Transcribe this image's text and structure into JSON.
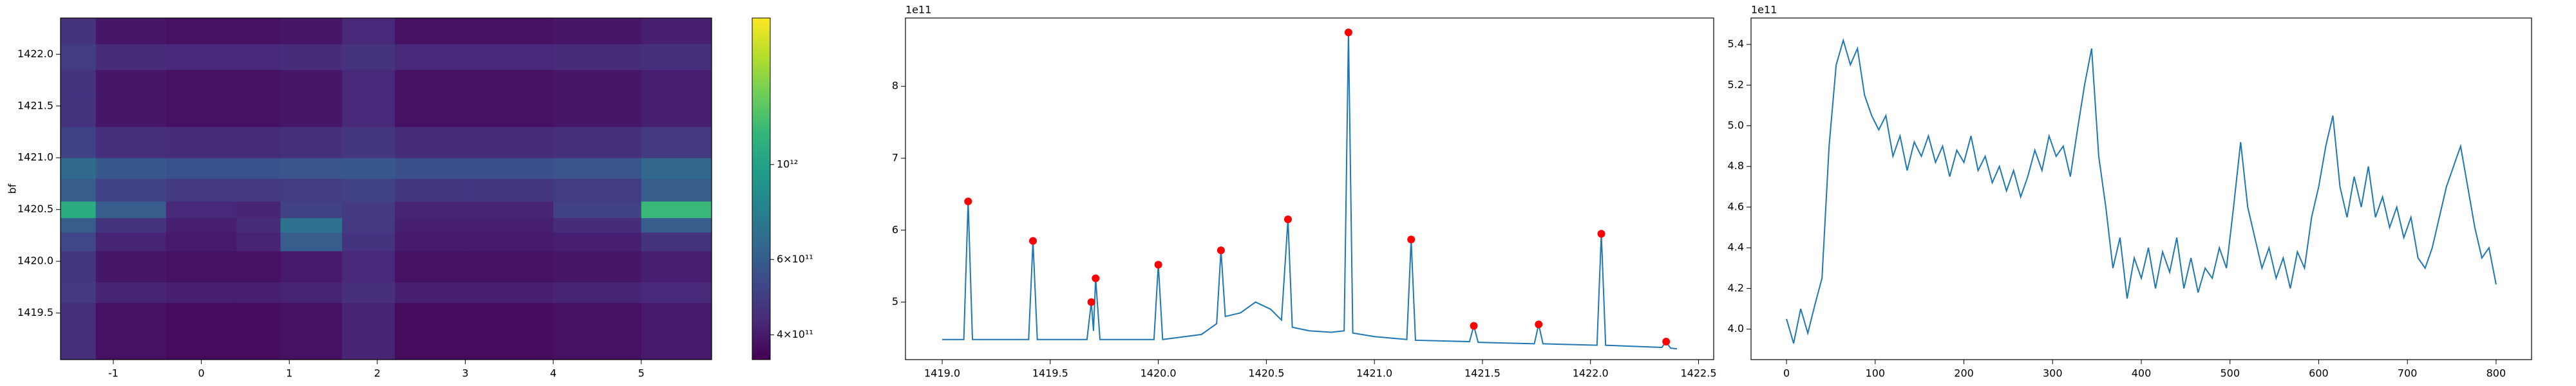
{
  "chart_data": [
    {
      "type": "heatmap",
      "ylabel": "bf",
      "xbins": [
        -1.6,
        -1.2,
        -0.4,
        0.4,
        0.9,
        1.6,
        2.2,
        3,
        4,
        5,
        5.8
      ],
      "ybins": [
        1419.05,
        1419.35,
        1419.6,
        1419.8,
        1420.1,
        1420.28,
        1420.42,
        1420.58,
        1420.8,
        1421.0,
        1421.3,
        1421.6,
        1421.85,
        1422.1,
        1422.35
      ],
      "z": [
        [
          450000000000.0,
          380000000000.0,
          370000000000.0,
          370000000000.0,
          380000000000.0,
          420000000000.0,
          370000000000.0,
          370000000000.0,
          380000000000.0,
          400000000000.0
        ],
        [
          450000000000.0,
          380000000000.0,
          370000000000.0,
          370000000000.0,
          380000000000.0,
          420000000000.0,
          370000000000.0,
          370000000000.0,
          380000000000.0,
          400000000000.0
        ],
        [
          480000000000.0,
          420000000000.0,
          410000000000.0,
          410000000000.0,
          420000000000.0,
          450000000000.0,
          410000000000.0,
          410000000000.0,
          420000000000.0,
          430000000000.0
        ],
        [
          470000000000.0,
          390000000000.0,
          380000000000.0,
          380000000000.0,
          400000000000.0,
          430000000000.0,
          380000000000.0,
          380000000000.0,
          390000000000.0,
          410000000000.0
        ],
        [
          520000000000.0,
          420000000000.0,
          400000000000.0,
          420000000000.0,
          600000000000.0,
          460000000000.0,
          400000000000.0,
          400000000000.0,
          410000000000.0,
          460000000000.0
        ],
        [
          600000000000.0,
          460000000000.0,
          410000000000.0,
          440000000000.0,
          700000000000.0,
          480000000000.0,
          410000000000.0,
          410000000000.0,
          440000000000.0,
          600000000000.0
        ],
        [
          1100000000000.0,
          600000000000.0,
          430000000000.0,
          420000000000.0,
          500000000000.0,
          480000000000.0,
          420000000000.0,
          420000000000.0,
          500000000000.0,
          1200000000000.0
        ],
        [
          600000000000.0,
          500000000000.0,
          480000000000.0,
          480000000000.0,
          490000000000.0,
          500000000000.0,
          470000000000.0,
          470000000000.0,
          490000000000.0,
          600000000000.0
        ],
        [
          650000000000.0,
          580000000000.0,
          560000000000.0,
          560000000000.0,
          570000000000.0,
          580000000000.0,
          550000000000.0,
          550000000000.0,
          570000000000.0,
          640000000000.0
        ],
        [
          500000000000.0,
          450000000000.0,
          440000000000.0,
          440000000000.0,
          450000000000.0,
          470000000000.0,
          440000000000.0,
          440000000000.0,
          450000000000.0,
          480000000000.0
        ],
        [
          460000000000.0,
          390000000000.0,
          380000000000.0,
          380000000000.0,
          390000000000.0,
          430000000000.0,
          380000000000.0,
          380000000000.0,
          390000000000.0,
          410000000000.0
        ],
        [
          460000000000.0,
          390000000000.0,
          380000000000.0,
          380000000000.0,
          390000000000.0,
          430000000000.0,
          380000000000.0,
          380000000000.0,
          390000000000.0,
          410000000000.0
        ],
        [
          490000000000.0,
          440000000000.0,
          430000000000.0,
          430000000000.0,
          440000000000.0,
          460000000000.0,
          430000000000.0,
          430000000000.0,
          440000000000.0,
          450000000000.0
        ],
        [
          460000000000.0,
          390000000000.0,
          380000000000.0,
          380000000000.0,
          390000000000.0,
          430000000000.0,
          380000000000.0,
          380000000000.0,
          390000000000.0,
          410000000000.0
        ]
      ],
      "xlim": [
        -1.6,
        5.8
      ],
      "ylim": [
        1419.05,
        1422.35
      ],
      "xticks": [
        -1,
        0,
        1,
        2,
        3,
        4,
        5
      ],
      "yticks": [
        1419.5,
        {
          "value": 1420.0,
          "label": "1420.0"
        },
        1420.5,
        {
          "value": 1421.0,
          "label": "1421.0"
        },
        1421.5,
        {
          "value": 1422.0,
          "label": "1422.0"
        }
      ],
      "colorbar": {
        "scale": "log",
        "colormap": "viridis",
        "lim": [
          350000000000.0,
          2200000000000.0
        ],
        "ticks": [
          {
            "value": 400000000000.0,
            "label": "4×10¹¹"
          },
          {
            "value": 600000000000.0,
            "label": "6×10¹¹"
          },
          {
            "value": 1000000000000.0,
            "label": "10¹²"
          }
        ]
      }
    },
    {
      "type": "line",
      "offset_label": "1e11",
      "xlim": [
        1418.83,
        1422.57
      ],
      "ylim": [
        4.2,
        8.95
      ],
      "xticks": [
        {
          "value": 1419.0,
          "label": "1419.0"
        },
        1419.5,
        {
          "value": 1420.0,
          "label": "1420.0"
        },
        1420.5,
        {
          "value": 1421.0,
          "label": "1421.0"
        },
        1421.5,
        {
          "value": 1422.0,
          "label": "1422.0"
        },
        1422.5
      ],
      "yticks": [
        5,
        6,
        7,
        8
      ],
      "series": [
        {
          "color": "#1f77b4",
          "kind": "line",
          "x": [
            1419.0,
            1419.1,
            1419.12,
            1419.14,
            1419.4,
            1419.42,
            1419.44,
            1419.67,
            1419.69,
            1419.7,
            1419.71,
            1419.73,
            1419.98,
            1420.0,
            1420.02,
            1420.2,
            1420.27,
            1420.29,
            1420.31,
            1420.38,
            1420.45,
            1420.52,
            1420.57,
            1420.6,
            1420.62,
            1420.7,
            1420.8,
            1420.86,
            1420.88,
            1420.9,
            1421.0,
            1421.15,
            1421.17,
            1421.19,
            1421.44,
            1421.46,
            1421.48,
            1421.74,
            1421.76,
            1421.78,
            1422.03,
            1422.05,
            1422.07,
            1422.33,
            1422.35,
            1422.37,
            1422.4
          ],
          "values": [
            4.48,
            4.48,
            6.4,
            4.48,
            4.48,
            5.85,
            4.48,
            4.48,
            5.0,
            4.6,
            5.33,
            4.48,
            4.48,
            5.52,
            4.48,
            4.55,
            4.7,
            5.72,
            4.8,
            4.85,
            5.0,
            4.9,
            4.75,
            6.15,
            4.65,
            4.6,
            4.58,
            4.6,
            8.75,
            4.57,
            4.52,
            4.48,
            5.87,
            4.47,
            4.45,
            4.67,
            4.44,
            4.42,
            4.69,
            4.42,
            4.4,
            5.95,
            4.4,
            4.37,
            4.45,
            4.36,
            4.35
          ]
        },
        {
          "color": "#ff0000",
          "kind": "scatter",
          "x": [
            1419.12,
            1419.42,
            1419.69,
            1419.71,
            1420.0,
            1420.29,
            1420.6,
            1420.88,
            1421.17,
            1421.46,
            1421.76,
            1422.05,
            1422.35
          ],
          "values": [
            6.4,
            5.85,
            5.0,
            5.33,
            5.52,
            5.72,
            6.15,
            8.75,
            5.87,
            4.67,
            4.69,
            5.95,
            4.45
          ]
        }
      ]
    },
    {
      "type": "line",
      "offset_label": "1e11",
      "xlim": [
        -40,
        840
      ],
      "ylim": [
        3.85,
        5.53
      ],
      "xticks": [
        0,
        100,
        200,
        300,
        400,
        500,
        600,
        700,
        800
      ],
      "yticks": [
        {
          "value": 4.0,
          "label": "4.0"
        },
        4.2,
        4.4,
        4.6,
        4.8,
        {
          "value": 5.0,
          "label": "5.0"
        },
        5.2,
        5.4
      ],
      "series": [
        {
          "color": "#1f77b4",
          "kind": "line",
          "x": [
            0,
            8,
            16,
            24,
            32,
            40,
            48,
            56,
            64,
            72,
            80,
            88,
            96,
            104,
            112,
            120,
            128,
            136,
            144,
            152,
            160,
            168,
            176,
            184,
            192,
            200,
            208,
            216,
            224,
            232,
            240,
            248,
            256,
            264,
            272,
            280,
            288,
            296,
            304,
            312,
            320,
            328,
            336,
            344,
            352,
            360,
            368,
            376,
            384,
            392,
            400,
            408,
            416,
            424,
            432,
            440,
            448,
            456,
            464,
            472,
            480,
            488,
            496,
            504,
            512,
            520,
            528,
            536,
            544,
            552,
            560,
            568,
            576,
            584,
            592,
            600,
            608,
            616,
            624,
            632,
            640,
            648,
            656,
            664,
            672,
            680,
            688,
            696,
            704,
            712,
            720,
            728,
            736,
            744,
            752,
            760,
            768,
            776,
            784,
            792,
            800
          ],
          "values": [
            4.05,
            3.93,
            4.1,
            3.98,
            4.12,
            4.25,
            4.9,
            5.3,
            5.42,
            5.3,
            5.38,
            5.15,
            5.05,
            4.98,
            5.05,
            4.85,
            4.95,
            4.78,
            4.92,
            4.85,
            4.95,
            4.82,
            4.9,
            4.75,
            4.88,
            4.82,
            4.95,
            4.78,
            4.85,
            4.72,
            4.8,
            4.68,
            4.78,
            4.65,
            4.75,
            4.88,
            4.78,
            4.95,
            4.85,
            4.9,
            4.75,
            4.98,
            5.2,
            5.38,
            4.85,
            4.6,
            4.3,
            4.45,
            4.15,
            4.35,
            4.25,
            4.4,
            4.2,
            4.38,
            4.28,
            4.45,
            4.2,
            4.35,
            4.18,
            4.3,
            4.25,
            4.4,
            4.3,
            4.6,
            4.92,
            4.6,
            4.45,
            4.3,
            4.4,
            4.25,
            4.35,
            4.2,
            4.38,
            4.3,
            4.55,
            4.7,
            4.9,
            5.05,
            4.7,
            4.55,
            4.75,
            4.6,
            4.8,
            4.55,
            4.65,
            4.5,
            4.6,
            4.45,
            4.55,
            4.35,
            4.3,
            4.4,
            4.55,
            4.7,
            4.8,
            4.9,
            4.7,
            4.5,
            4.35,
            4.4,
            4.22
          ]
        }
      ]
    }
  ]
}
